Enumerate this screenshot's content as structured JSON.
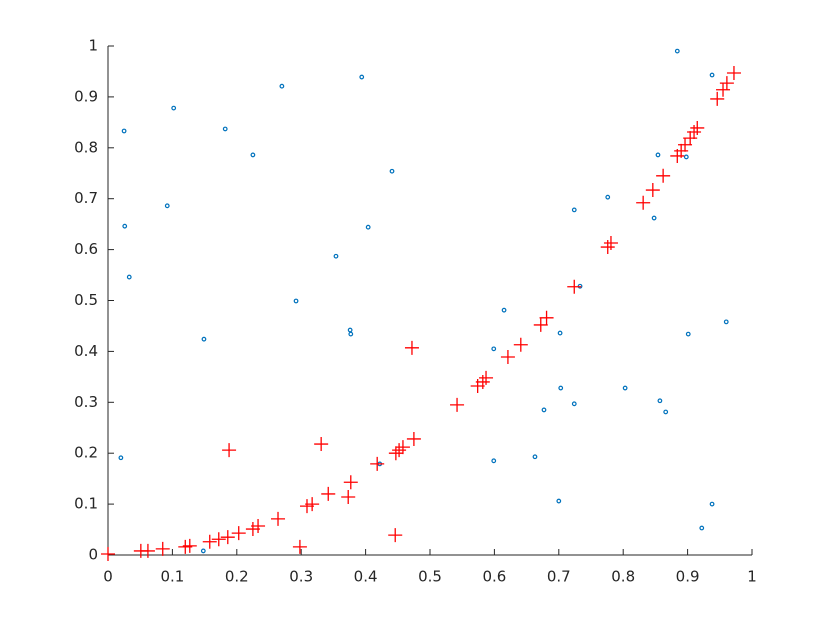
{
  "chart_data": {
    "type": "scatter",
    "xlim": [
      0,
      1
    ],
    "ylim": [
      0,
      1
    ],
    "xticks": [
      0,
      0.1,
      0.2,
      0.3,
      0.4,
      0.5,
      0.6,
      0.7,
      0.8,
      0.9,
      1
    ],
    "yticks": [
      0,
      0.1,
      0.2,
      0.3,
      0.4,
      0.5,
      0.6,
      0.7,
      0.8,
      0.9,
      1
    ],
    "grid": false,
    "series": [
      {
        "color": "#0072bd",
        "marker": "circle",
        "x": [
          0.025,
          0.026,
          0.033,
          0.02,
          0.102,
          0.092,
          0.149,
          0.148,
          0.182,
          0.225,
          0.27,
          0.292,
          0.354,
          0.376,
          0.377,
          0.394,
          0.404,
          0.441,
          0.422,
          0.599,
          0.615,
          0.599,
          0.663,
          0.677,
          0.702,
          0.703,
          0.7,
          0.724,
          0.724,
          0.733,
          0.776,
          0.803,
          0.848,
          0.854,
          0.857,
          0.866,
          0.884,
          0.898,
          0.901,
          0.938,
          0.938,
          0.922,
          0.96
        ],
        "values": [
          0.833,
          0.646,
          0.546,
          0.191,
          0.878,
          0.686,
          0.424,
          0.008,
          0.837,
          0.786,
          0.921,
          0.499,
          0.587,
          0.442,
          0.434,
          0.939,
          0.644,
          0.754,
          0.179,
          0.405,
          0.481,
          0.185,
          0.193,
          0.285,
          0.436,
          0.328,
          0.106,
          0.678,
          0.297,
          0.528,
          0.703,
          0.328,
          0.662,
          0.786,
          0.303,
          0.281,
          0.99,
          0.782,
          0.434,
          0.943,
          0.1,
          0.053,
          0.458
        ]
      },
      {
        "color": "#ff0000",
        "marker": "plus",
        "x": [
          0.0,
          0.051,
          0.062,
          0.085,
          0.12,
          0.127,
          0.158,
          0.172,
          0.186,
          0.188,
          0.203,
          0.225,
          0.233,
          0.264,
          0.298,
          0.309,
          0.317,
          0.331,
          0.342,
          0.373,
          0.377,
          0.418,
          0.446,
          0.447,
          0.452,
          0.458,
          0.472,
          0.475,
          0.542,
          0.574,
          0.582,
          0.587,
          0.621,
          0.641,
          0.672,
          0.681,
          0.724,
          0.776,
          0.781,
          0.831,
          0.846,
          0.862,
          0.884,
          0.89,
          0.896,
          0.904,
          0.91,
          0.915,
          0.946,
          0.955,
          0.961,
          0.972
        ],
        "values": [
          0.002,
          0.008,
          0.008,
          0.012,
          0.016,
          0.018,
          0.026,
          0.031,
          0.035,
          0.206,
          0.043,
          0.051,
          0.057,
          0.071,
          0.016,
          0.096,
          0.1,
          0.218,
          0.12,
          0.114,
          0.143,
          0.179,
          0.039,
          0.2,
          0.206,
          0.212,
          0.407,
          0.228,
          0.295,
          0.332,
          0.34,
          0.348,
          0.389,
          0.413,
          0.452,
          0.466,
          0.527,
          0.605,
          0.613,
          0.692,
          0.717,
          0.745,
          0.784,
          0.794,
          0.806,
          0.819,
          0.831,
          0.839,
          0.896,
          0.914,
          0.927,
          0.947
        ]
      }
    ]
  }
}
